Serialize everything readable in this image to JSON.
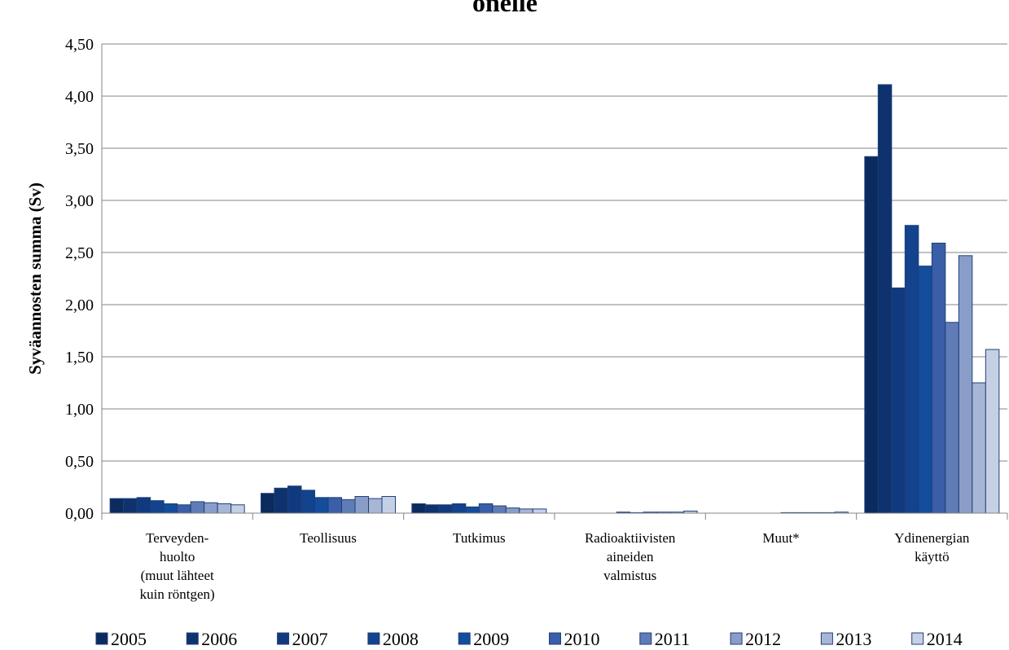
{
  "chart_data": {
    "type": "bar",
    "title": "onelle",
    "ylabel": "Syväannosten summa (Sv)",
    "categories": [
      "Terveyden-\nhuolto\n(muut lähteet\nkuin röntgen)",
      "Teollisuus",
      "Tutkimus",
      "Radioaktiivisten\naineiden\nvalmistus",
      "Muut*",
      "Ydinenergian\nkäyttö"
    ],
    "series": [
      {
        "name": "2005",
        "color": "#0b2a5e",
        "values": [
          0.14,
          0.19,
          0.09,
          0,
          0,
          3.42
        ]
      },
      {
        "name": "2006",
        "color": "#0e326e",
        "values": [
          0.14,
          0.24,
          0.08,
          0,
          0,
          4.11
        ]
      },
      {
        "name": "2007",
        "color": "#103a7d",
        "values": [
          0.15,
          0.26,
          0.08,
          0,
          0,
          2.16
        ]
      },
      {
        "name": "2008",
        "color": "#12438c",
        "values": [
          0.12,
          0.22,
          0.09,
          0,
          0,
          2.76
        ]
      },
      {
        "name": "2009",
        "color": "#134d9c",
        "values": [
          0.09,
          0.15,
          0.06,
          0.01,
          0,
          2.37
        ]
      },
      {
        "name": "2010",
        "color": "#3a5ea8",
        "values": [
          0.08,
          0.15,
          0.09,
          0.005,
          0.005,
          2.59
        ]
      },
      {
        "name": "2011",
        "color": "#5f7cb6",
        "values": [
          0.11,
          0.13,
          0.07,
          0.01,
          0.005,
          1.83
        ]
      },
      {
        "name": "2012",
        "color": "#8a9dc8",
        "values": [
          0.1,
          0.16,
          0.05,
          0.01,
          0.005,
          2.47
        ]
      },
      {
        "name": "2013",
        "color": "#a8b6d6",
        "values": [
          0.09,
          0.14,
          0.04,
          0.01,
          0.005,
          1.25
        ]
      },
      {
        "name": "2014",
        "color": "#c6d0e5",
        "values": [
          0.08,
          0.16,
          0.04,
          0.02,
          0.01,
          1.57
        ]
      }
    ],
    "ylim": [
      0,
      4.5
    ],
    "yticks": [
      {
        "value": 0,
        "label": "0,00"
      },
      {
        "value": 0.5,
        "label": "0,50"
      },
      {
        "value": 1,
        "label": "1,00"
      },
      {
        "value": 1.5,
        "label": "1,50"
      },
      {
        "value": 2,
        "label": "2,00"
      },
      {
        "value": 2.5,
        "label": "2,50"
      },
      {
        "value": 3,
        "label": "3,00"
      },
      {
        "value": 3.5,
        "label": "3,50"
      },
      {
        "value": 4,
        "label": "4,00"
      },
      {
        "value": 4.5,
        "label": "4,50"
      }
    ],
    "grid": true,
    "legend": "bottom"
  }
}
